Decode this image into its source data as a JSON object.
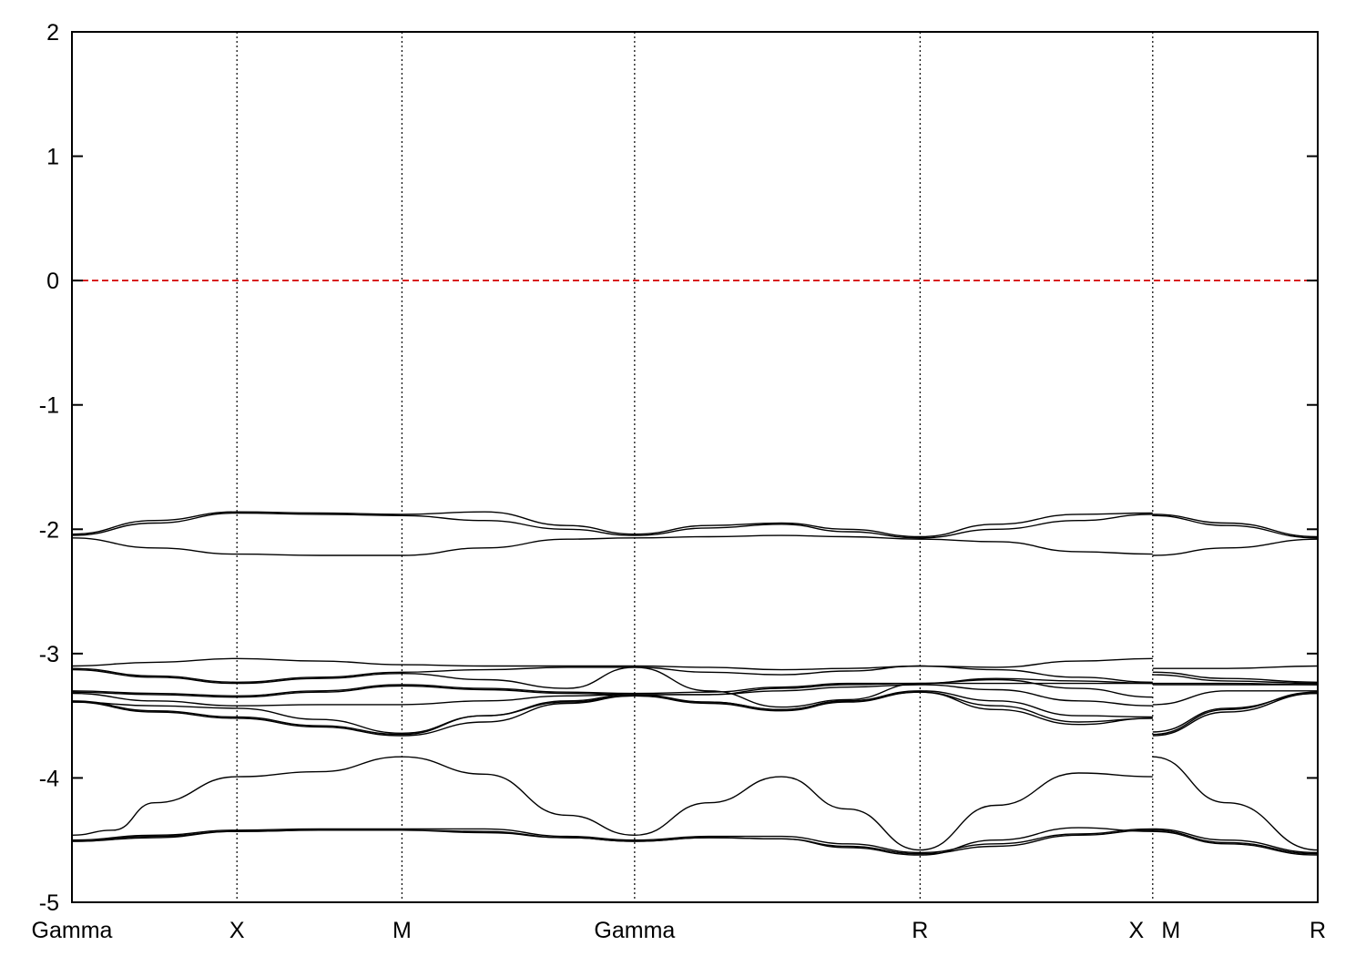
{
  "chart_data": {
    "type": "line",
    "title": "",
    "xlabel": "",
    "ylabel": "",
    "ylim": [
      -5,
      2
    ],
    "yticks": [
      2,
      1,
      0,
      -1,
      -2,
      -3,
      -4,
      -5
    ],
    "ytick_labels": [
      "2",
      "1",
      "0",
      "-1",
      "-2",
      "-3",
      "-4",
      "-5"
    ],
    "xlim": [
      0,
      7.55
    ],
    "kpoints": [
      {
        "label": "Gamma",
        "x": 0
      },
      {
        "label": "X",
        "x": 1
      },
      {
        "label": "M",
        "x": 2
      },
      {
        "label": "Gamma",
        "x": 3.41
      },
      {
        "label": "R",
        "x": 5.14
      },
      {
        "label": "X",
        "x": 6.55
      },
      {
        "label": "M",
        "x": 6.55
      },
      {
        "label": "R",
        "x": 7.55
      }
    ],
    "vertical_lines_x": [
      1,
      2,
      3.41,
      5.14,
      6.55
    ],
    "reference_line": {
      "y": 0,
      "color": "#d40000",
      "style": "dashed"
    },
    "line_color": "#000000",
    "grid": false,
    "legend": "none",
    "series": [
      {
        "x": [
          0,
          0.5,
          1,
          1.5,
          2,
          2.5,
          3,
          3.41,
          3.86,
          4.3,
          4.7,
          5.14,
          5.6,
          6.1,
          6.55,
          6.55,
          7.0,
          7.55
        ],
        "y": [
          -2.04,
          -1.93,
          -1.86,
          -1.87,
          -1.88,
          -1.86,
          -1.97,
          -2.04,
          -1.97,
          -1.95,
          -2.0,
          -2.06,
          -1.96,
          -1.88,
          -1.87,
          -1.88,
          -1.95,
          -2.06
        ]
      },
      {
        "x": [
          0,
          0.5,
          1,
          1.5,
          2,
          2.5,
          3,
          3.41,
          3.86,
          4.3,
          4.7,
          5.14,
          5.6,
          6.1,
          6.55,
          6.55,
          7.0,
          7.55
        ],
        "y": [
          -2.05,
          -1.95,
          -1.87,
          -1.88,
          -1.89,
          -1.93,
          -2.0,
          -2.05,
          -1.99,
          -1.96,
          -2.02,
          -2.07,
          -2.0,
          -1.93,
          -1.88,
          -1.89,
          -1.97,
          -2.07
        ]
      },
      {
        "x": [
          0,
          0.5,
          1,
          1.5,
          2,
          2.5,
          3,
          3.41,
          3.86,
          4.3,
          4.7,
          5.14,
          5.6,
          6.1,
          6.55,
          6.55,
          7.0,
          7.55
        ],
        "y": [
          -2.07,
          -2.15,
          -2.2,
          -2.21,
          -2.21,
          -2.15,
          -2.08,
          -2.07,
          -2.06,
          -2.05,
          -2.06,
          -2.08,
          -2.1,
          -2.18,
          -2.2,
          -2.21,
          -2.15,
          -2.08
        ]
      },
      {
        "x": [
          0,
          0.5,
          1,
          1.5,
          2,
          2.5,
          3,
          3.41,
          3.86,
          4.3,
          4.7,
          5.14,
          5.6,
          6.1,
          6.55,
          6.55,
          7.0,
          7.55
        ],
        "y": [
          -3.1,
          -3.07,
          -3.04,
          -3.06,
          -3.09,
          -3.1,
          -3.1,
          -3.1,
          -3.11,
          -3.13,
          -3.12,
          -3.1,
          -3.11,
          -3.06,
          -3.04,
          -3.12,
          -3.12,
          -3.1
        ]
      },
      {
        "x": [
          0,
          0.5,
          1,
          1.5,
          2,
          2.5,
          3,
          3.41,
          3.86,
          4.3,
          4.7,
          5.14,
          5.6,
          6.1,
          6.55,
          6.55,
          7.0,
          7.55
        ],
        "y": [
          -3.12,
          -3.18,
          -3.23,
          -3.19,
          -3.15,
          -3.13,
          -3.11,
          -3.11,
          -3.15,
          -3.17,
          -3.14,
          -3.1,
          -3.13,
          -3.19,
          -3.23,
          -3.15,
          -3.2,
          -3.23
        ]
      },
      {
        "x": [
          0,
          0.5,
          1,
          1.5,
          2,
          2.5,
          3,
          3.41,
          3.86,
          4.3,
          4.7,
          5.14,
          5.6,
          6.1,
          6.55,
          6.55,
          7.0,
          7.55
        ],
        "y": [
          -3.13,
          -3.19,
          -3.24,
          -3.2,
          -3.16,
          -3.21,
          -3.28,
          -3.11,
          -3.3,
          -3.43,
          -3.37,
          -3.24,
          -3.2,
          -3.22,
          -3.24,
          -3.17,
          -3.22,
          -3.24
        ]
      },
      {
        "x": [
          0,
          0.5,
          1,
          1.5,
          2,
          2.5,
          3,
          3.41,
          3.86,
          4.3,
          4.7,
          5.14,
          5.6,
          6.1,
          6.55,
          6.55,
          7.0,
          7.55
        ],
        "y": [
          -3.3,
          -3.32,
          -3.34,
          -3.3,
          -3.25,
          -3.28,
          -3.31,
          -3.32,
          -3.31,
          -3.27,
          -3.24,
          -3.24,
          -3.24,
          -3.24,
          -3.24,
          -3.24,
          -3.24,
          -3.25
        ]
      },
      {
        "x": [
          0,
          0.5,
          1,
          1.5,
          2,
          2.5,
          3,
          3.41,
          3.86,
          4.3,
          4.7,
          5.14,
          5.6,
          6.1,
          6.55,
          6.55,
          7.0,
          7.55
        ],
        "y": [
          -3.31,
          -3.33,
          -3.35,
          -3.31,
          -3.26,
          -3.29,
          -3.32,
          -3.33,
          -3.33,
          -3.28,
          -3.25,
          -3.24,
          -3.21,
          -3.28,
          -3.35,
          -3.25,
          -3.25,
          -3.25
        ]
      },
      {
        "x": [
          0,
          0.5,
          1,
          1.5,
          2,
          2.5,
          3,
          3.41,
          3.86,
          4.3,
          4.7,
          5.14,
          5.6,
          6.1,
          6.55,
          6.55,
          7.0,
          7.55
        ],
        "y": [
          -3.32,
          -3.38,
          -3.42,
          -3.41,
          -3.41,
          -3.38,
          -3.34,
          -3.33,
          -3.33,
          -3.3,
          -3.27,
          -3.25,
          -3.29,
          -3.38,
          -3.42,
          -3.41,
          -3.3,
          -3.3
        ]
      },
      {
        "x": [
          0,
          0.5,
          1,
          1.5,
          2,
          2.5,
          3,
          3.41,
          3.86,
          4.3,
          4.7,
          5.14,
          5.6,
          6.1,
          6.55,
          6.55,
          7.0,
          7.55
        ],
        "y": [
          -3.38,
          -3.46,
          -3.51,
          -3.58,
          -3.65,
          -3.5,
          -3.38,
          -3.33,
          -3.39,
          -3.45,
          -3.38,
          -3.3,
          -3.38,
          -3.5,
          -3.51,
          -3.65,
          -3.45,
          -3.31
        ]
      },
      {
        "x": [
          0,
          0.5,
          1,
          1.5,
          2,
          2.5,
          3,
          3.41,
          3.86,
          4.3,
          4.7,
          5.14,
          5.6,
          6.1,
          6.55,
          6.55,
          7.0,
          7.55
        ],
        "y": [
          -3.39,
          -3.47,
          -3.52,
          -3.59,
          -3.66,
          -3.55,
          -3.4,
          -3.34,
          -3.4,
          -3.46,
          -3.39,
          -3.31,
          -3.42,
          -3.55,
          -3.52,
          -3.66,
          -3.47,
          -3.32
        ]
      },
      {
        "x": [
          0,
          0.5,
          1,
          1.5,
          2,
          2.5,
          3,
          3.41,
          3.86,
          4.3,
          4.7,
          5.14,
          5.6,
          6.1,
          6.55,
          6.55,
          7.0,
          7.55
        ],
        "y": [
          -3.39,
          -3.42,
          -3.44,
          -3.53,
          -3.64,
          -3.5,
          -3.39,
          -3.34,
          -3.39,
          -3.45,
          -3.38,
          -3.31,
          -3.45,
          -3.57,
          -3.52,
          -3.63,
          -3.44,
          -3.32
        ]
      },
      {
        "x": [
          0,
          0.25,
          0.5,
          1,
          1.5,
          2,
          2.5,
          3,
          3.41,
          3.86,
          4.3,
          4.7,
          5.14,
          5.6,
          6.1,
          6.55,
          6.55,
          7.0,
          7.55
        ],
        "y": [
          -4.46,
          -4.42,
          -4.2,
          -3.99,
          -3.95,
          -3.83,
          -3.97,
          -4.3,
          -4.46,
          -4.2,
          -3.99,
          -4.25,
          -4.58,
          -4.22,
          -3.96,
          -3.99,
          -3.83,
          -4.2,
          -4.58
        ]
      },
      {
        "x": [
          0,
          0.5,
          1,
          1.5,
          2,
          2.5,
          3,
          3.41,
          3.86,
          4.3,
          4.7,
          5.14,
          5.6,
          6.1,
          6.55,
          6.55,
          7.0,
          7.55
        ],
        "y": [
          -4.5,
          -4.46,
          -4.42,
          -4.41,
          -4.41,
          -4.41,
          -4.47,
          -4.5,
          -4.47,
          -4.47,
          -4.53,
          -4.6,
          -4.53,
          -4.45,
          -4.41,
          -4.41,
          -4.5,
          -4.6
        ]
      },
      {
        "x": [
          0,
          0.5,
          1,
          1.5,
          2,
          2.5,
          3,
          3.41,
          3.86,
          4.3,
          4.7,
          5.14,
          5.6,
          6.1,
          6.55,
          6.55,
          7.0,
          7.55
        ],
        "y": [
          -4.51,
          -4.47,
          -4.43,
          -4.42,
          -4.42,
          -4.43,
          -4.48,
          -4.51,
          -4.48,
          -4.49,
          -4.55,
          -4.61,
          -4.55,
          -4.46,
          -4.42,
          -4.42,
          -4.52,
          -4.61
        ]
      },
      {
        "x": [
          0,
          0.5,
          1,
          1.5,
          2,
          2.5,
          3,
          3.41,
          3.86,
          4.3,
          4.7,
          5.14,
          5.6,
          6.1,
          6.55,
          6.55,
          7.0,
          7.55
        ],
        "y": [
          -4.51,
          -4.48,
          -4.43,
          -4.42,
          -4.42,
          -4.44,
          -4.48,
          -4.51,
          -4.48,
          -4.49,
          -4.56,
          -4.62,
          -4.5,
          -4.4,
          -4.43,
          -4.43,
          -4.53,
          -4.62
        ]
      }
    ]
  }
}
